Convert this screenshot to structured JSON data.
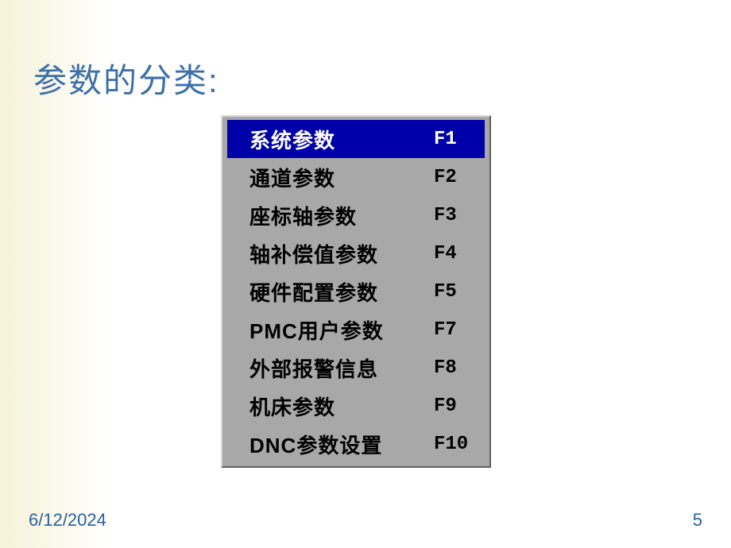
{
  "title": "参数的分类:",
  "menu": {
    "items": [
      {
        "label": "系统参数",
        "key": "F1",
        "selected": true
      },
      {
        "label": "通道参数",
        "key": "F2",
        "selected": false
      },
      {
        "label": "座标轴参数",
        "key": "F3",
        "selected": false
      },
      {
        "label": "轴补偿值参数",
        "key": "F4",
        "selected": false
      },
      {
        "label": "硬件配置参数",
        "key": "F5",
        "selected": false
      },
      {
        "label": "PMC用户参数",
        "key": "F7",
        "selected": false
      },
      {
        "label": "外部报警信息",
        "key": "F8",
        "selected": false
      },
      {
        "label": "机床参数",
        "key": "F9",
        "selected": false
      },
      {
        "label": "DNC参数设置",
        "key": "F10",
        "selected": false
      }
    ]
  },
  "footer": {
    "date": "6/12/2024",
    "page": "5"
  },
  "colors": {
    "title_color": "#3d6fa8",
    "menu_bg": "#a8a8a8",
    "selected_bg": "#0000a8",
    "selected_fg": "#ffffff",
    "footer_color": "#2a6099"
  }
}
